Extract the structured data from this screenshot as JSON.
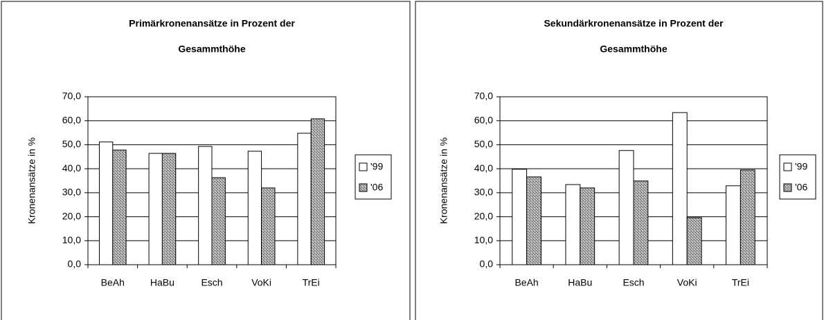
{
  "chart_data": [
    {
      "type": "bar",
      "title": [
        "Primärkronenansätze in Prozent der",
        "Gesammthöhe"
      ],
      "y_label": "Kronenansätze in %",
      "categories": [
        "BeAh",
        "HaBu",
        "Esch",
        "VoKi",
        "TrEi"
      ],
      "series": [
        {
          "name": "'99",
          "color": "#ffffff",
          "values": [
            51.2,
            46.4,
            49.3,
            47.3,
            54.8
          ]
        },
        {
          "name": "'06",
          "color": "#8c8c8c",
          "values": [
            47.8,
            46.4,
            36.3,
            32.0,
            60.8
          ]
        }
      ],
      "ylim": [
        0,
        70
      ],
      "yticks": [
        {
          "value": 0,
          "label": "0,0"
        },
        {
          "value": 10,
          "label": "10,0"
        },
        {
          "value": 20,
          "label": "20,0"
        },
        {
          "value": 30,
          "label": "30,0"
        },
        {
          "value": 40,
          "label": "40,0"
        },
        {
          "value": 50,
          "label": "50,0"
        },
        {
          "value": 60,
          "label": "60,0"
        },
        {
          "value": 70,
          "label": "70,0"
        }
      ],
      "grid": true,
      "legend": "right"
    },
    {
      "type": "bar",
      "title": [
        "Sekundärkronenansätze in Prozent der",
        "Gesammthöhe"
      ],
      "y_label": "Kronenansätze in %",
      "categories": [
        "BeAh",
        "HaBu",
        "Esch",
        "VoKi",
        "TrEi"
      ],
      "series": [
        {
          "name": "'99",
          "color": "#ffffff",
          "values": [
            39.8,
            33.4,
            47.6,
            63.4,
            32.9
          ]
        },
        {
          "name": "'06",
          "color": "#8c8c8c",
          "values": [
            36.6,
            32.0,
            34.9,
            19.6,
            39.5
          ]
        }
      ],
      "ylim": [
        0,
        70
      ],
      "yticks": [
        {
          "value": 0,
          "label": "0,0"
        },
        {
          "value": 10,
          "label": "10,0"
        },
        {
          "value": 20,
          "label": "20,0"
        },
        {
          "value": 30,
          "label": "30,0"
        },
        {
          "value": 40,
          "label": "40,0"
        },
        {
          "value": 50,
          "label": "50,0"
        },
        {
          "value": 60,
          "label": "60,0"
        },
        {
          "value": 70,
          "label": "70,0"
        }
      ],
      "grid": true,
      "legend": "right"
    }
  ]
}
